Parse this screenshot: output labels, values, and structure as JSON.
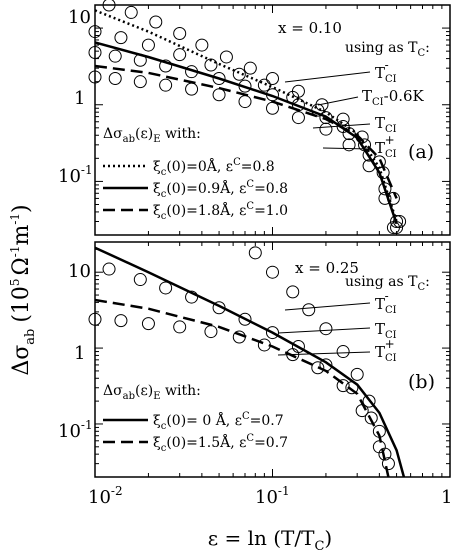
{
  "figure": {
    "ylabel": "Δσ",
    "ylabel_sub": "ab",
    "ylabel_units": "(10",
    "ylabel_units_exp": "5",
    "ylabel_units_rest": "Ω",
    "ylabel_units_exp2": "-1",
    "ylabel_units_m": "m",
    "ylabel_units_exp3": "-1",
    "ylabel_units_close": ")",
    "xlabel": "ε = ln (T/T",
    "xlabel_sub": "C",
    "xlabel_close": ")"
  },
  "chart_data": [
    {
      "type": "line",
      "panel": "a",
      "panel_label": "(a)",
      "x_value_text": "x = 0.10",
      "using_text": "using as T",
      "using_sub": "C",
      "using_suffix": ":",
      "xscale": "log",
      "yscale": "log",
      "xlim": [
        0.01,
        1
      ],
      "ylim": [
        0.02,
        20
      ],
      "yticks": [
        "10",
        "1",
        "10"
      ],
      "curve_labels": [
        {
          "main": "T",
          "sub": "CI",
          "sup": "-",
          "suffix": ""
        },
        {
          "main": "T",
          "sub": "CI",
          "sup": "",
          "suffix": "-0.6K"
        },
        {
          "main": "T",
          "sub": "CI",
          "sup": "",
          "suffix": ""
        },
        {
          "main": "T",
          "sub": "CI",
          "sup": "+",
          "suffix": ""
        }
      ],
      "legend_title": {
        "main": "Δσ",
        "sub": "ab",
        "mid": "(ε)",
        "sub2": "E",
        "rest": " with:"
      },
      "series": [
        {
          "legend": "ξ",
          "sub": "c",
          "rest": "(0)=0Å,   ε",
          "sup": "C",
          "tail": "=0.8",
          "style": "dotted",
          "x": [
            0.01,
            0.02,
            0.05,
            0.1,
            0.2,
            0.3,
            0.4,
            0.5
          ],
          "y": [
            17,
            9,
            3.4,
            1.7,
            0.8,
            0.42,
            0.15,
            0.03
          ]
        },
        {
          "legend": "ξ",
          "sub": "c",
          "rest": "(0)=0.9Å, ε",
          "sup": "C",
          "tail": "=0.8",
          "style": "solid",
          "x": [
            0.01,
            0.02,
            0.05,
            0.1,
            0.2,
            0.3,
            0.4,
            0.5
          ],
          "y": [
            6.5,
            4.2,
            2.2,
            1.3,
            0.7,
            0.37,
            0.13,
            0.028
          ]
        },
        {
          "legend": "ξ",
          "sub": "c",
          "rest": "(0)=1.8Å, ε",
          "sup": "C",
          "tail": "=1.0",
          "style": "dashed",
          "x": [
            0.01,
            0.02,
            0.05,
            0.1,
            0.2,
            0.3,
            0.4,
            0.5
          ],
          "y": [
            3.2,
            2.6,
            1.65,
            1.1,
            0.65,
            0.4,
            0.2,
            0.06
          ]
        }
      ],
      "scatter": [
        {
          "name": "T_CI-",
          "x": [
            0.012,
            0.016,
            0.022,
            0.03,
            0.04,
            0.055,
            0.075,
            0.1,
            0.14,
            0.19,
            0.25,
            0.32,
            0.4,
            0.48,
            0.52
          ],
          "y": [
            20,
            16,
            12,
            8.5,
            6,
            4.2,
            3,
            2.2,
            1.5,
            1,
            0.65,
            0.38,
            0.18,
            0.06,
            0.03
          ]
        },
        {
          "name": "T_CI-0.6K",
          "x": [
            0.01,
            0.014,
            0.02,
            0.03,
            0.045,
            0.065,
            0.09,
            0.13,
            0.18,
            0.25,
            0.33,
            0.42,
            0.5
          ],
          "y": [
            9,
            7.5,
            6,
            4.5,
            3.3,
            2.5,
            1.8,
            1.25,
            0.85,
            0.52,
            0.3,
            0.13,
            0.03
          ]
        },
        {
          "name": "T_CI",
          "x": [
            0.01,
            0.013,
            0.018,
            0.025,
            0.035,
            0.05,
            0.07,
            0.1,
            0.14,
            0.2,
            0.27,
            0.35,
            0.43,
            0.5
          ],
          "y": [
            4.8,
            4.3,
            3.8,
            3.2,
            2.7,
            2.2,
            1.75,
            1.35,
            1,
            0.68,
            0.42,
            0.22,
            0.08,
            0.025
          ]
        },
        {
          "name": "T_CI+",
          "x": [
            0.01,
            0.013,
            0.018,
            0.025,
            0.035,
            0.05,
            0.07,
            0.1,
            0.14,
            0.2,
            0.27,
            0.35,
            0.43,
            0.48
          ],
          "y": [
            2.3,
            2.2,
            2,
            1.8,
            1.6,
            1.35,
            1.1,
            0.9,
            0.68,
            0.48,
            0.3,
            0.16,
            0.06,
            0.025
          ]
        }
      ]
    },
    {
      "type": "line",
      "panel": "b",
      "panel_label": "(b)",
      "x_value_text": "x = 0.25",
      "using_text": "using as T",
      "using_sub": "C",
      "using_suffix": ":",
      "xscale": "log",
      "yscale": "log",
      "xlim": [
        0.01,
        1
      ],
      "ylim": [
        0.02,
        25
      ],
      "xticks": [
        "10",
        "10",
        "1"
      ],
      "xticks_exp": [
        "-2",
        "-1",
        ""
      ],
      "yticks": [
        "10",
        "1",
        "10"
      ],
      "curve_labels": [
        {
          "main": "T",
          "sub": "CI",
          "sup": "-",
          "suffix": ""
        },
        {
          "main": "T",
          "sub": "CI",
          "sup": "",
          "suffix": ""
        },
        {
          "main": "T",
          "sub": "CI",
          "sup": "+",
          "suffix": ""
        }
      ],
      "legend_title": {
        "main": "Δσ",
        "sub": "ab",
        "mid": "(ε)",
        "sub2": "E",
        "rest": " with:"
      },
      "series": [
        {
          "legend": "ξ",
          "sub": "c",
          "rest": "(0)= 0 Å,  ε",
          "sup": "C",
          "tail": "=0.7",
          "style": "solid",
          "x": [
            0.01,
            0.02,
            0.05,
            0.1,
            0.2,
            0.3,
            0.4,
            0.5,
            0.55
          ],
          "y": [
            21,
            10,
            3.6,
            1.6,
            0.65,
            0.33,
            0.14,
            0.045,
            0.02
          ]
        },
        {
          "legend": "ξ",
          "sub": "c",
          "rest": "(0)=1.5Å, ε",
          "sup": "C",
          "tail": "=0.7",
          "style": "dashed",
          "x": [
            0.01,
            0.02,
            0.05,
            0.1,
            0.2,
            0.3,
            0.4,
            0.45
          ],
          "y": [
            4.3,
            3.3,
            1.9,
            1.05,
            0.5,
            0.25,
            0.07,
            0.02
          ]
        }
      ],
      "scatter": [
        {
          "name": "T_CI-",
          "x": [
            0.08,
            0.1,
            0.13,
            0.16,
            0.2,
            0.25,
            0.3,
            0.35,
            0.4,
            0.45
          ],
          "y": [
            18,
            10,
            5.5,
            3.2,
            1.8,
            0.9,
            0.45,
            0.2,
            0.08,
            0.03
          ]
        },
        {
          "name": "T_CI",
          "x": [
            0.012,
            0.018,
            0.025,
            0.035,
            0.05,
            0.07,
            0.1,
            0.14,
            0.2,
            0.28,
            0.36,
            0.43
          ],
          "y": [
            11,
            8,
            6.2,
            4.7,
            3.4,
            2.4,
            1.6,
            1.05,
            0.6,
            0.3,
            0.12,
            0.04
          ]
        },
        {
          "name": "T_CI+",
          "x": [
            0.01,
            0.014,
            0.02,
            0.03,
            0.045,
            0.065,
            0.09,
            0.13,
            0.18,
            0.25,
            0.32,
            0.4
          ],
          "y": [
            2.4,
            2.3,
            2.1,
            1.9,
            1.65,
            1.4,
            1.1,
            0.82,
            0.55,
            0.32,
            0.15,
            0.05
          ]
        }
      ]
    }
  ]
}
